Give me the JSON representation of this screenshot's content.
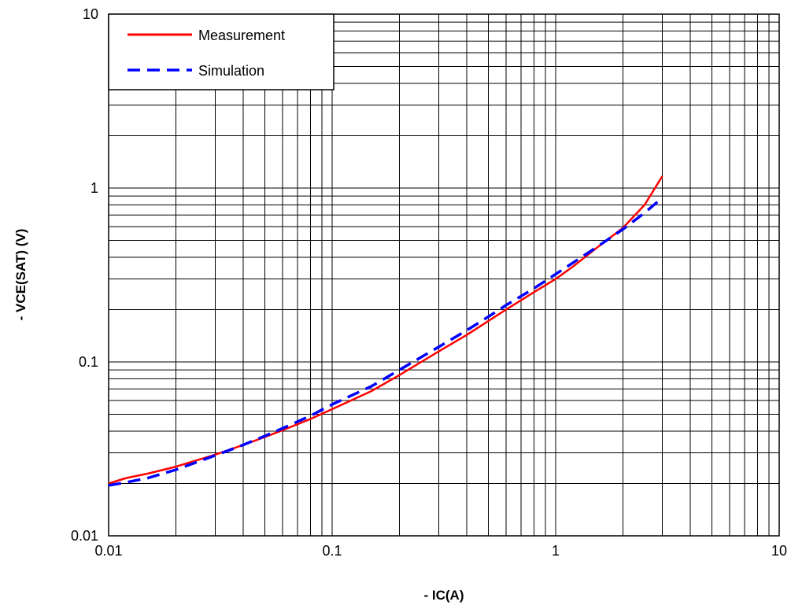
{
  "chart_data": {
    "type": "line",
    "xscale": "log",
    "yscale": "log",
    "xlim": [
      0.01,
      10
    ],
    "ylim": [
      0.01,
      10
    ],
    "xlabel": "- IC(A)",
    "ylabel": "- VCE(SAT) (V)",
    "x_ticks": [
      "0.01",
      "0.1",
      "1",
      "10"
    ],
    "y_ticks": [
      "0.01",
      "0.1",
      "1",
      "10"
    ],
    "grid": true,
    "legend_position": "top-left",
    "series": [
      {
        "name": "Measurement",
        "color": "#ff0000",
        "style": "solid",
        "points": [
          [
            0.01,
            0.02
          ],
          [
            0.012,
            0.0215
          ],
          [
            0.015,
            0.0228
          ],
          [
            0.02,
            0.025
          ],
          [
            0.03,
            0.0293
          ],
          [
            0.04,
            0.0333
          ],
          [
            0.05,
            0.037
          ],
          [
            0.06,
            0.0405
          ],
          [
            0.08,
            0.047
          ],
          [
            0.1,
            0.0535
          ],
          [
            0.15,
            0.068
          ],
          [
            0.2,
            0.084
          ],
          [
            0.3,
            0.115
          ],
          [
            0.4,
            0.143
          ],
          [
            0.5,
            0.172
          ],
          [
            0.6,
            0.2
          ],
          [
            0.8,
            0.252
          ],
          [
            1.0,
            0.3
          ],
          [
            1.2,
            0.355
          ],
          [
            1.5,
            0.445
          ],
          [
            2.0,
            0.59
          ],
          [
            2.5,
            0.8
          ],
          [
            3.0,
            1.17
          ]
        ]
      },
      {
        "name": "Simulation",
        "color": "#0000ff",
        "style": "dashed",
        "points": [
          [
            0.01,
            0.0195
          ],
          [
            0.012,
            0.0203
          ],
          [
            0.015,
            0.0215
          ],
          [
            0.02,
            0.024
          ],
          [
            0.03,
            0.029
          ],
          [
            0.04,
            0.0333
          ],
          [
            0.05,
            0.0375
          ],
          [
            0.06,
            0.0415
          ],
          [
            0.08,
            0.049
          ],
          [
            0.1,
            0.057
          ],
          [
            0.15,
            0.0725
          ],
          [
            0.2,
            0.09
          ],
          [
            0.3,
            0.122
          ],
          [
            0.4,
            0.152
          ],
          [
            0.5,
            0.182
          ],
          [
            0.6,
            0.212
          ],
          [
            0.8,
            0.265
          ],
          [
            1.0,
            0.32
          ],
          [
            1.5,
            0.45
          ],
          [
            2.0,
            0.58
          ],
          [
            2.5,
            0.72
          ],
          [
            3.0,
            0.88
          ]
        ]
      }
    ]
  }
}
